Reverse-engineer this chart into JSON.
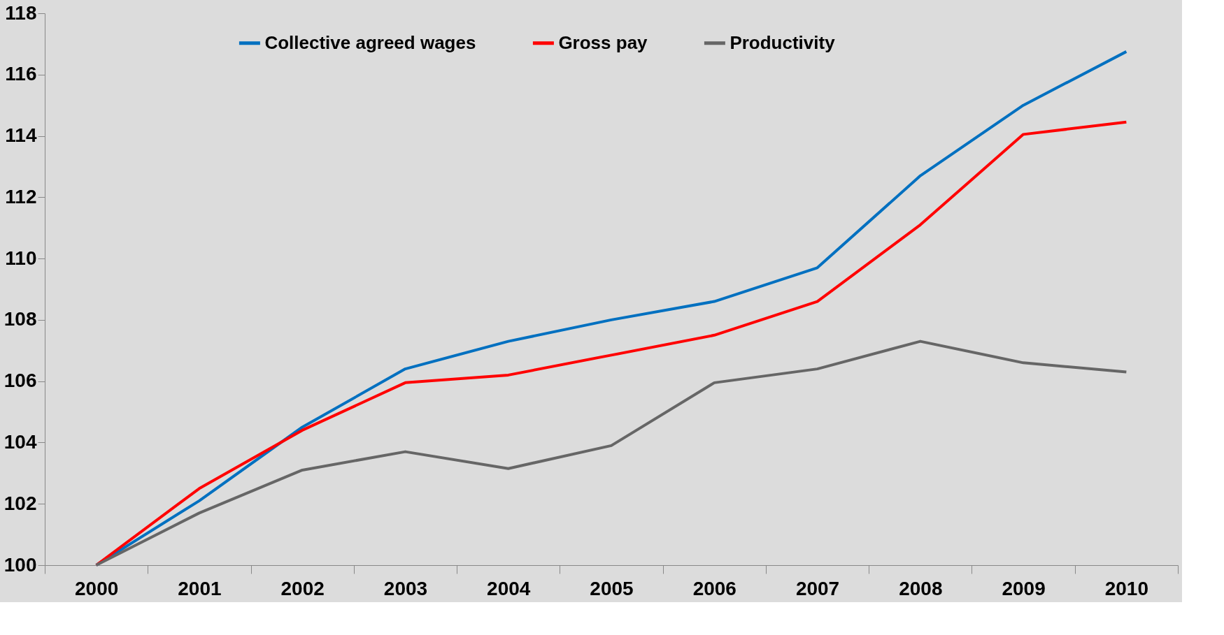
{
  "chart_data": {
    "type": "line",
    "categories": [
      "2000",
      "2001",
      "2002",
      "2003",
      "2004",
      "2005",
      "2006",
      "2007",
      "2008",
      "2009",
      "2010"
    ],
    "series": [
      {
        "name": "Collective agreed wages",
        "color": "#0070c0",
        "values": [
          100,
          102.1,
          104.5,
          106.4,
          107.3,
          108.0,
          108.6,
          109.7,
          112.7,
          115.0,
          116.75
        ]
      },
      {
        "name": "Gross pay",
        "color": "#ff0000",
        "values": [
          100,
          102.5,
          104.4,
          105.95,
          106.2,
          106.85,
          107.5,
          108.6,
          111.1,
          114.05,
          114.45
        ]
      },
      {
        "name": "Productivity",
        "color": "#666666",
        "values": [
          100,
          101.7,
          103.1,
          103.7,
          103.15,
          103.9,
          105.95,
          106.4,
          107.3,
          106.6,
          106.3
        ]
      }
    ],
    "ylim": [
      100,
      118
    ],
    "yticks": [
      100,
      102,
      104,
      106,
      108,
      110,
      112,
      114,
      116,
      118
    ],
    "grid": false,
    "legend": "top",
    "marker": "none",
    "line_style": "solid"
  }
}
